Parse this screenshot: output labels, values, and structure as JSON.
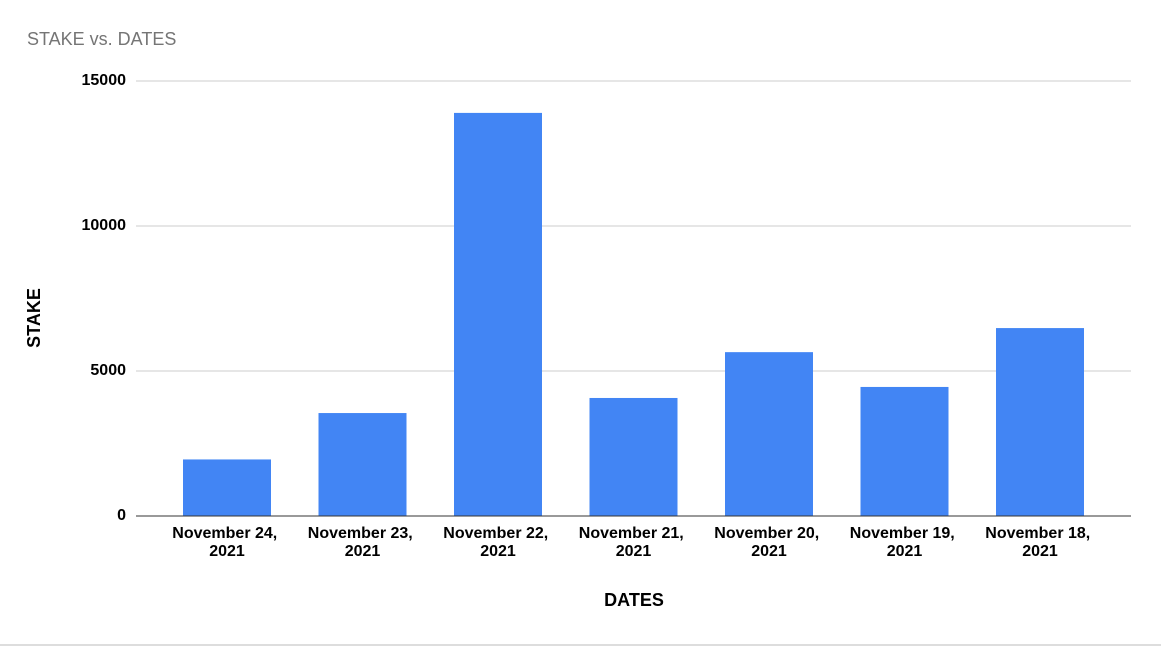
{
  "chart_data": {
    "type": "bar",
    "title": "STAKE vs. DATES",
    "x_label": "DATES",
    "y_label": "STAKE",
    "categories": [
      "November 24, 2021",
      "November 23, 2021",
      "November 22, 2021",
      "November 21, 2021",
      "November 20, 2021",
      "November 19, 2021",
      "November 18, 2021"
    ],
    "values": [
      1950,
      3550,
      13900,
      4070,
      5650,
      4450,
      6480
    ],
    "color": "#4285f4",
    "ylim": [
      0,
      15000
    ],
    "yticks": [
      0,
      5000,
      10000,
      15000
    ],
    "grid": true
  }
}
